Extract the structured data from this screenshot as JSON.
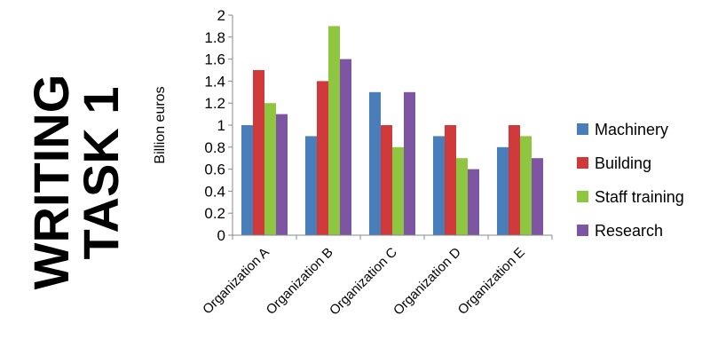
{
  "banner": {
    "line1": "WRITING",
    "line2": "TASK 1"
  },
  "chart_data": {
    "type": "bar",
    "categories": [
      "Organization A",
      "Organization B",
      "Organization C",
      "Organization D",
      "Organization E"
    ],
    "series": [
      {
        "name": "Machinery",
        "color": "#4a7ebb",
        "values": [
          1.0,
          0.9,
          1.3,
          0.9,
          0.8
        ]
      },
      {
        "name": "Building",
        "color": "#d03a3a",
        "values": [
          1.5,
          1.4,
          1.0,
          1.0,
          1.0
        ]
      },
      {
        "name": "Staff training",
        "color": "#8fc63f",
        "values": [
          1.2,
          1.9,
          0.8,
          0.7,
          0.9
        ]
      },
      {
        "name": "Research",
        "color": "#7e55a2",
        "values": [
          1.1,
          1.6,
          1.3,
          0.6,
          0.7
        ]
      }
    ],
    "title": "",
    "xlabel": "",
    "ylabel": "Billion euros",
    "ylim": [
      0,
      2
    ],
    "yticks": [
      "0",
      "0.2",
      "0.4",
      "0.6",
      "0.8",
      "1",
      "1.2",
      "1.4",
      "1.6",
      "1.8",
      "2"
    ],
    "grid": false,
    "legend": "right"
  }
}
